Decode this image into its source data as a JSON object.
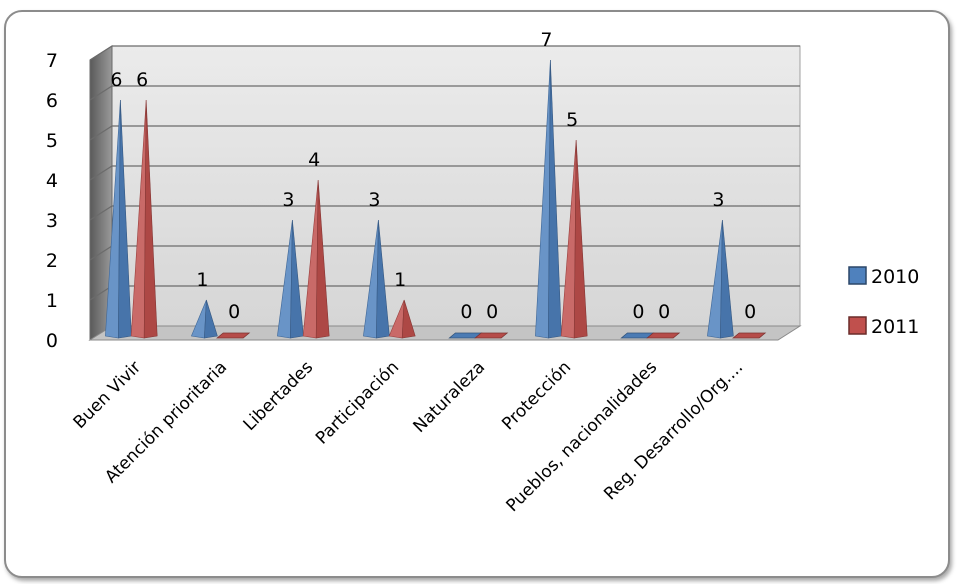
{
  "chart_data": {
    "type": "bar",
    "categories": [
      "Buen Vivir",
      "Atención prioritaria",
      "Libertades",
      "Participación",
      "Naturaleza",
      "Protección",
      "Pueblos, nacionalidades",
      "Reg. Desarrollo/Org...."
    ],
    "series": [
      {
        "name": "2010",
        "values": [
          6,
          1,
          3,
          3,
          0,
          7,
          0,
          3
        ],
        "color": "#4f81bd"
      },
      {
        "name": "2011",
        "values": [
          6,
          0,
          4,
          1,
          0,
          5,
          0,
          0
        ],
        "color": "#c0504d"
      }
    ],
    "y_ticks": [
      "0",
      "1",
      "2",
      "3",
      "4",
      "5",
      "6",
      "7"
    ],
    "ylim": [
      0,
      7
    ],
    "grid": true,
    "legend_position": "right",
    "shape": "3d-cone",
    "title": "",
    "xlabel": "",
    "ylabel": ""
  }
}
